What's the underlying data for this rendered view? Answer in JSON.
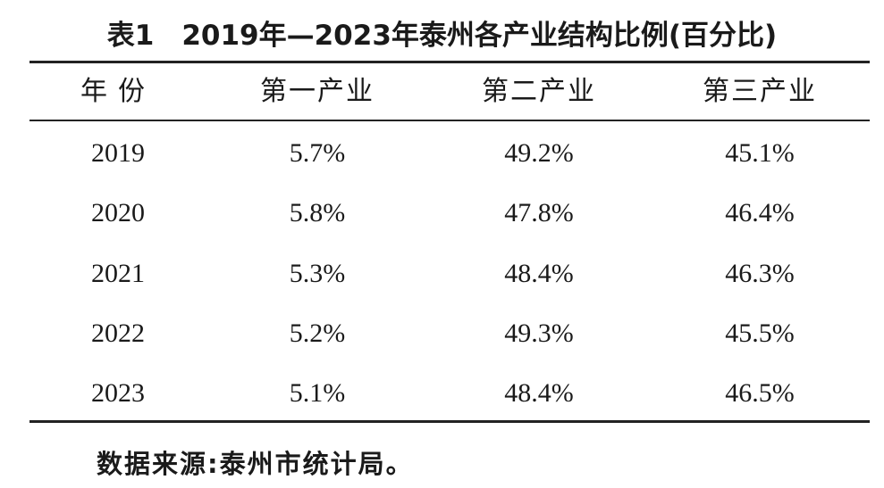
{
  "title": "表1　2019年—2023年泰州各产业结构比例(百分比)",
  "table": {
    "header": [
      "年份",
      "第一产业",
      "第二产业",
      "第三产业"
    ],
    "rows": [
      [
        "2019",
        "5.7%",
        "49.2%",
        "45.1%"
      ],
      [
        "2020",
        "5.8%",
        "47.8%",
        "46.4%"
      ],
      [
        "2021",
        "5.3%",
        "48.4%",
        "46.3%"
      ],
      [
        "2022",
        "5.2%",
        "49.3%",
        "45.5%"
      ],
      [
        "2023",
        "5.1%",
        "48.4%",
        "46.5%"
      ]
    ]
  },
  "source": "数据来源:泰州市统计局。"
}
